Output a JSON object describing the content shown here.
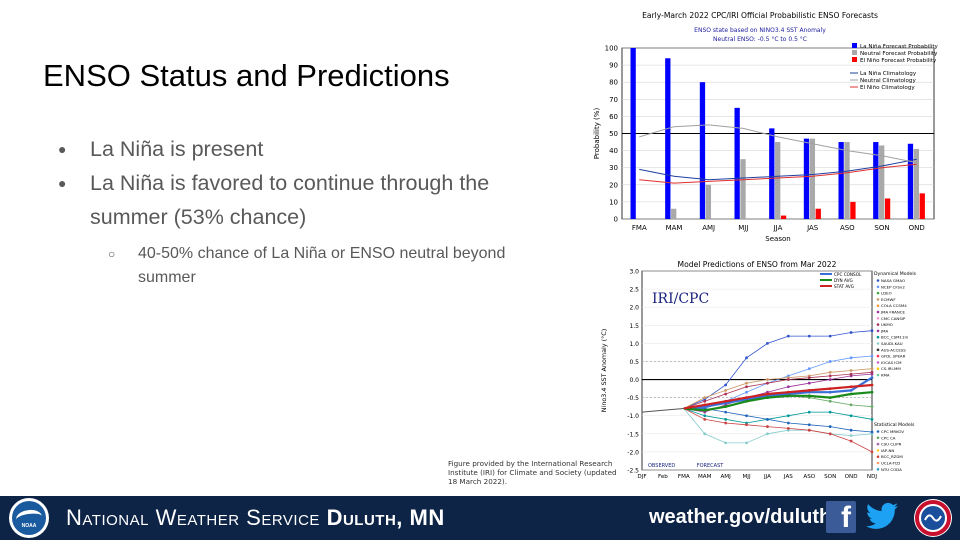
{
  "slide": {
    "title": "ENSO Status and Predictions",
    "bullets": [
      {
        "text": "La Niña is present"
      },
      {
        "text": "La Niña is favored to continue through the summer (53% chance)"
      }
    ],
    "sub_bullet": "40-50% chance of La Niña or ENSO neutral beyond summer",
    "caption": "Figure provided by the International Research Institute (IRI) for Climate and Society (updated 18 March 2022)."
  },
  "footer": {
    "office_prefix": "National Weather Service",
    "office_location": "Duluth, MN",
    "url": "weather.gov/duluth",
    "facebook_glyph": "f",
    "noaa_label": "NOAA",
    "bg_color": "#0d2446"
  },
  "chart_data": [
    {
      "type": "bar",
      "title": "Early-March 2022 CPC/IRI Official Probabilistic ENSO Forecasts",
      "subtitle_1": "ENSO state based on NINO3.4 SST Anomaly",
      "subtitle_2": "Neutral ENSO: -0.5 °C to 0.5 °C",
      "xlabel": "Season",
      "ylabel": "Probability (%)",
      "ylim": [
        0,
        100
      ],
      "yticks": [
        0,
        10,
        20,
        30,
        40,
        50,
        60,
        70,
        80,
        90,
        100
      ],
      "categories": [
        "FMA",
        "MAM",
        "AMJ",
        "MJJ",
        "JJA",
        "JAS",
        "ASO",
        "SON",
        "OND"
      ],
      "series": [
        {
          "name": "La Niña Forecast Probability",
          "color": "#0000ff",
          "values": [
            100,
            94,
            80,
            65,
            53,
            47,
            45,
            45,
            44
          ]
        },
        {
          "name": "Neutral Forecast Probability",
          "color": "#a9a9a9",
          "values": [
            0,
            6,
            20,
            35,
            45,
            47,
            45,
            43,
            41
          ]
        },
        {
          "name": "El Niño Forecast Probability",
          "color": "#ff0000",
          "values": [
            0,
            0,
            0,
            0,
            2,
            6,
            10,
            12,
            15
          ]
        }
      ],
      "climatology": [
        {
          "name": "La Niña Climatology",
          "color": "#1f3fa0",
          "values": [
            29,
            25,
            23,
            24,
            25,
            26,
            28,
            31,
            35
          ]
        },
        {
          "name": "Neutral Climatology",
          "color": "#a0a0a0",
          "values": [
            48,
            54,
            55,
            53,
            48,
            44,
            40,
            37,
            33
          ]
        },
        {
          "name": "El Niño Climatology",
          "color": "#e03030",
          "values": [
            23,
            21,
            22,
            23,
            24,
            25,
            27,
            30,
            32
          ]
        }
      ],
      "reference_line": 50,
      "legend_position": "top-right"
    },
    {
      "type": "line",
      "title": "Model Predictions of ENSO from Mar 2022",
      "watermark": "IRI/CPC",
      "ylabel": "Nino3.4 SST Anomaly (°C)",
      "ylim": [
        -2.5,
        3.0
      ],
      "yticks": [
        "3.0",
        "2.5",
        "2.0",
        "1.5",
        "1.0",
        "0.5",
        "0.0",
        "-0.5",
        "-1.0",
        "-1.5",
        "-2.0",
        "-2.5"
      ],
      "categories": [
        "DJF",
        "Feb",
        "FMA",
        "MAM",
        "AMJ",
        "MJJ",
        "JJA",
        "JAS",
        "ASO",
        "SON",
        "OND",
        "NDJ"
      ],
      "observed_label": "OBSERVED",
      "forecast_label": "FORECAST",
      "observed": [
        -0.9,
        -0.85,
        -0.8
      ],
      "legend_averages": [
        {
          "name": "CPC CONSOL",
          "color": "#3a6fd8",
          "values": [
            -0.75,
            -0.65,
            -0.55,
            -0.45,
            -0.4,
            -0.35,
            -0.35,
            -0.3,
            0.05
          ]
        },
        {
          "name": "DYN AVG",
          "color": "#1a8a1a",
          "values": [
            -0.85,
            -0.75,
            -0.6,
            -0.5,
            -0.45,
            -0.45,
            -0.5,
            -0.4,
            -0.35
          ]
        },
        {
          "name": "STAT AVG",
          "color": "#cc2222",
          "values": [
            -0.7,
            -0.6,
            -0.5,
            -0.4,
            -0.35,
            -0.3,
            -0.25,
            -0.2,
            -0.15
          ]
        }
      ],
      "dynamical_title": "Dynamical Models",
      "dynamical_models": [
        {
          "name": "NASA GMAO",
          "color": "#3355cc",
          "values": [
            -0.55,
            -0.15,
            0.6,
            1.0,
            1.2,
            1.2,
            1.2,
            1.3,
            1.35
          ]
        },
        {
          "name": "NCEP CFSv2",
          "color": "#6699ff",
          "values": [
            -0.8,
            -0.6,
            -0.35,
            -0.1,
            0.1,
            0.3,
            0.5,
            0.6,
            0.65
          ]
        },
        {
          "name": "JMA",
          "color": "#993399",
          "values": [
            -0.9,
            -0.7,
            -0.5,
            -0.35,
            -0.2,
            -0.1,
            0.0,
            0.1,
            0.15
          ]
        },
        {
          "name": "BCC_CSM11m",
          "color": "#009999",
          "values": [
            -1.0,
            -1.1,
            -1.2,
            -1.1,
            -1.0,
            -0.9,
            -0.9,
            -1.0,
            -1.1
          ]
        },
        {
          "name": "SAUDI-KAU",
          "color": "#88cccc",
          "values": [
            -1.5,
            -1.75,
            -1.75,
            -1.5,
            -1.4,
            -1.4,
            -1.5,
            -1.55,
            -1.5
          ]
        },
        {
          "name": "ECMWF",
          "color": "#cc9966",
          "values": [
            -0.5,
            -0.3,
            -0.1,
            0.0,
            0.05,
            0.1,
            0.2,
            0.25,
            0.3
          ]
        },
        {
          "name": "UKMO",
          "color": "#aa3355",
          "values": [
            -0.6,
            -0.4,
            -0.2,
            -0.1,
            0.0,
            0.05,
            0.1,
            0.15,
            0.2
          ]
        }
      ],
      "dynamical_legend": [
        "NASA GMAO",
        "NCEP CFSv2",
        "LDEO",
        "ECMWF",
        "COLA CCSM4",
        "JMA FRANCE",
        "CMC CANSIP",
        "UKMO",
        "JMA",
        "BCC_CSM11m",
        "SAUDI-KAU",
        "AUS-ACCESS",
        "GFDL SPEAR",
        "IOCAS ICM",
        "CS-IRI-MM",
        "KMA"
      ],
      "statistical_title": "Statistical Models",
      "statistical_models": [
        {
          "name": "CPC MRKOV",
          "color": "#2266bb",
          "values": [
            -0.8,
            -0.9,
            -1.0,
            -1.1,
            -1.2,
            -1.25,
            -1.3,
            -1.4,
            -1.45
          ]
        },
        {
          "name": "CPC CA",
          "color": "#66aa66",
          "values": [
            -0.85,
            -0.75,
            -0.6,
            -0.5,
            -0.45,
            -0.5,
            -0.6,
            -0.7,
            -0.75
          ]
        },
        {
          "name": "BCC_RZDM",
          "color": "#cc4444",
          "values": [
            -1.1,
            -1.2,
            -1.25,
            -1.3,
            -1.35,
            -1.4,
            -1.5,
            -1.7,
            -2.0
          ]
        }
      ],
      "statistical_legend": [
        "CPC MRKOV",
        "CPC CA",
        "CSU CLIPR",
        "IAP-NN",
        "BCC_RZDM",
        "UCLA-TCD",
        "NTU CODA"
      ]
    }
  ]
}
